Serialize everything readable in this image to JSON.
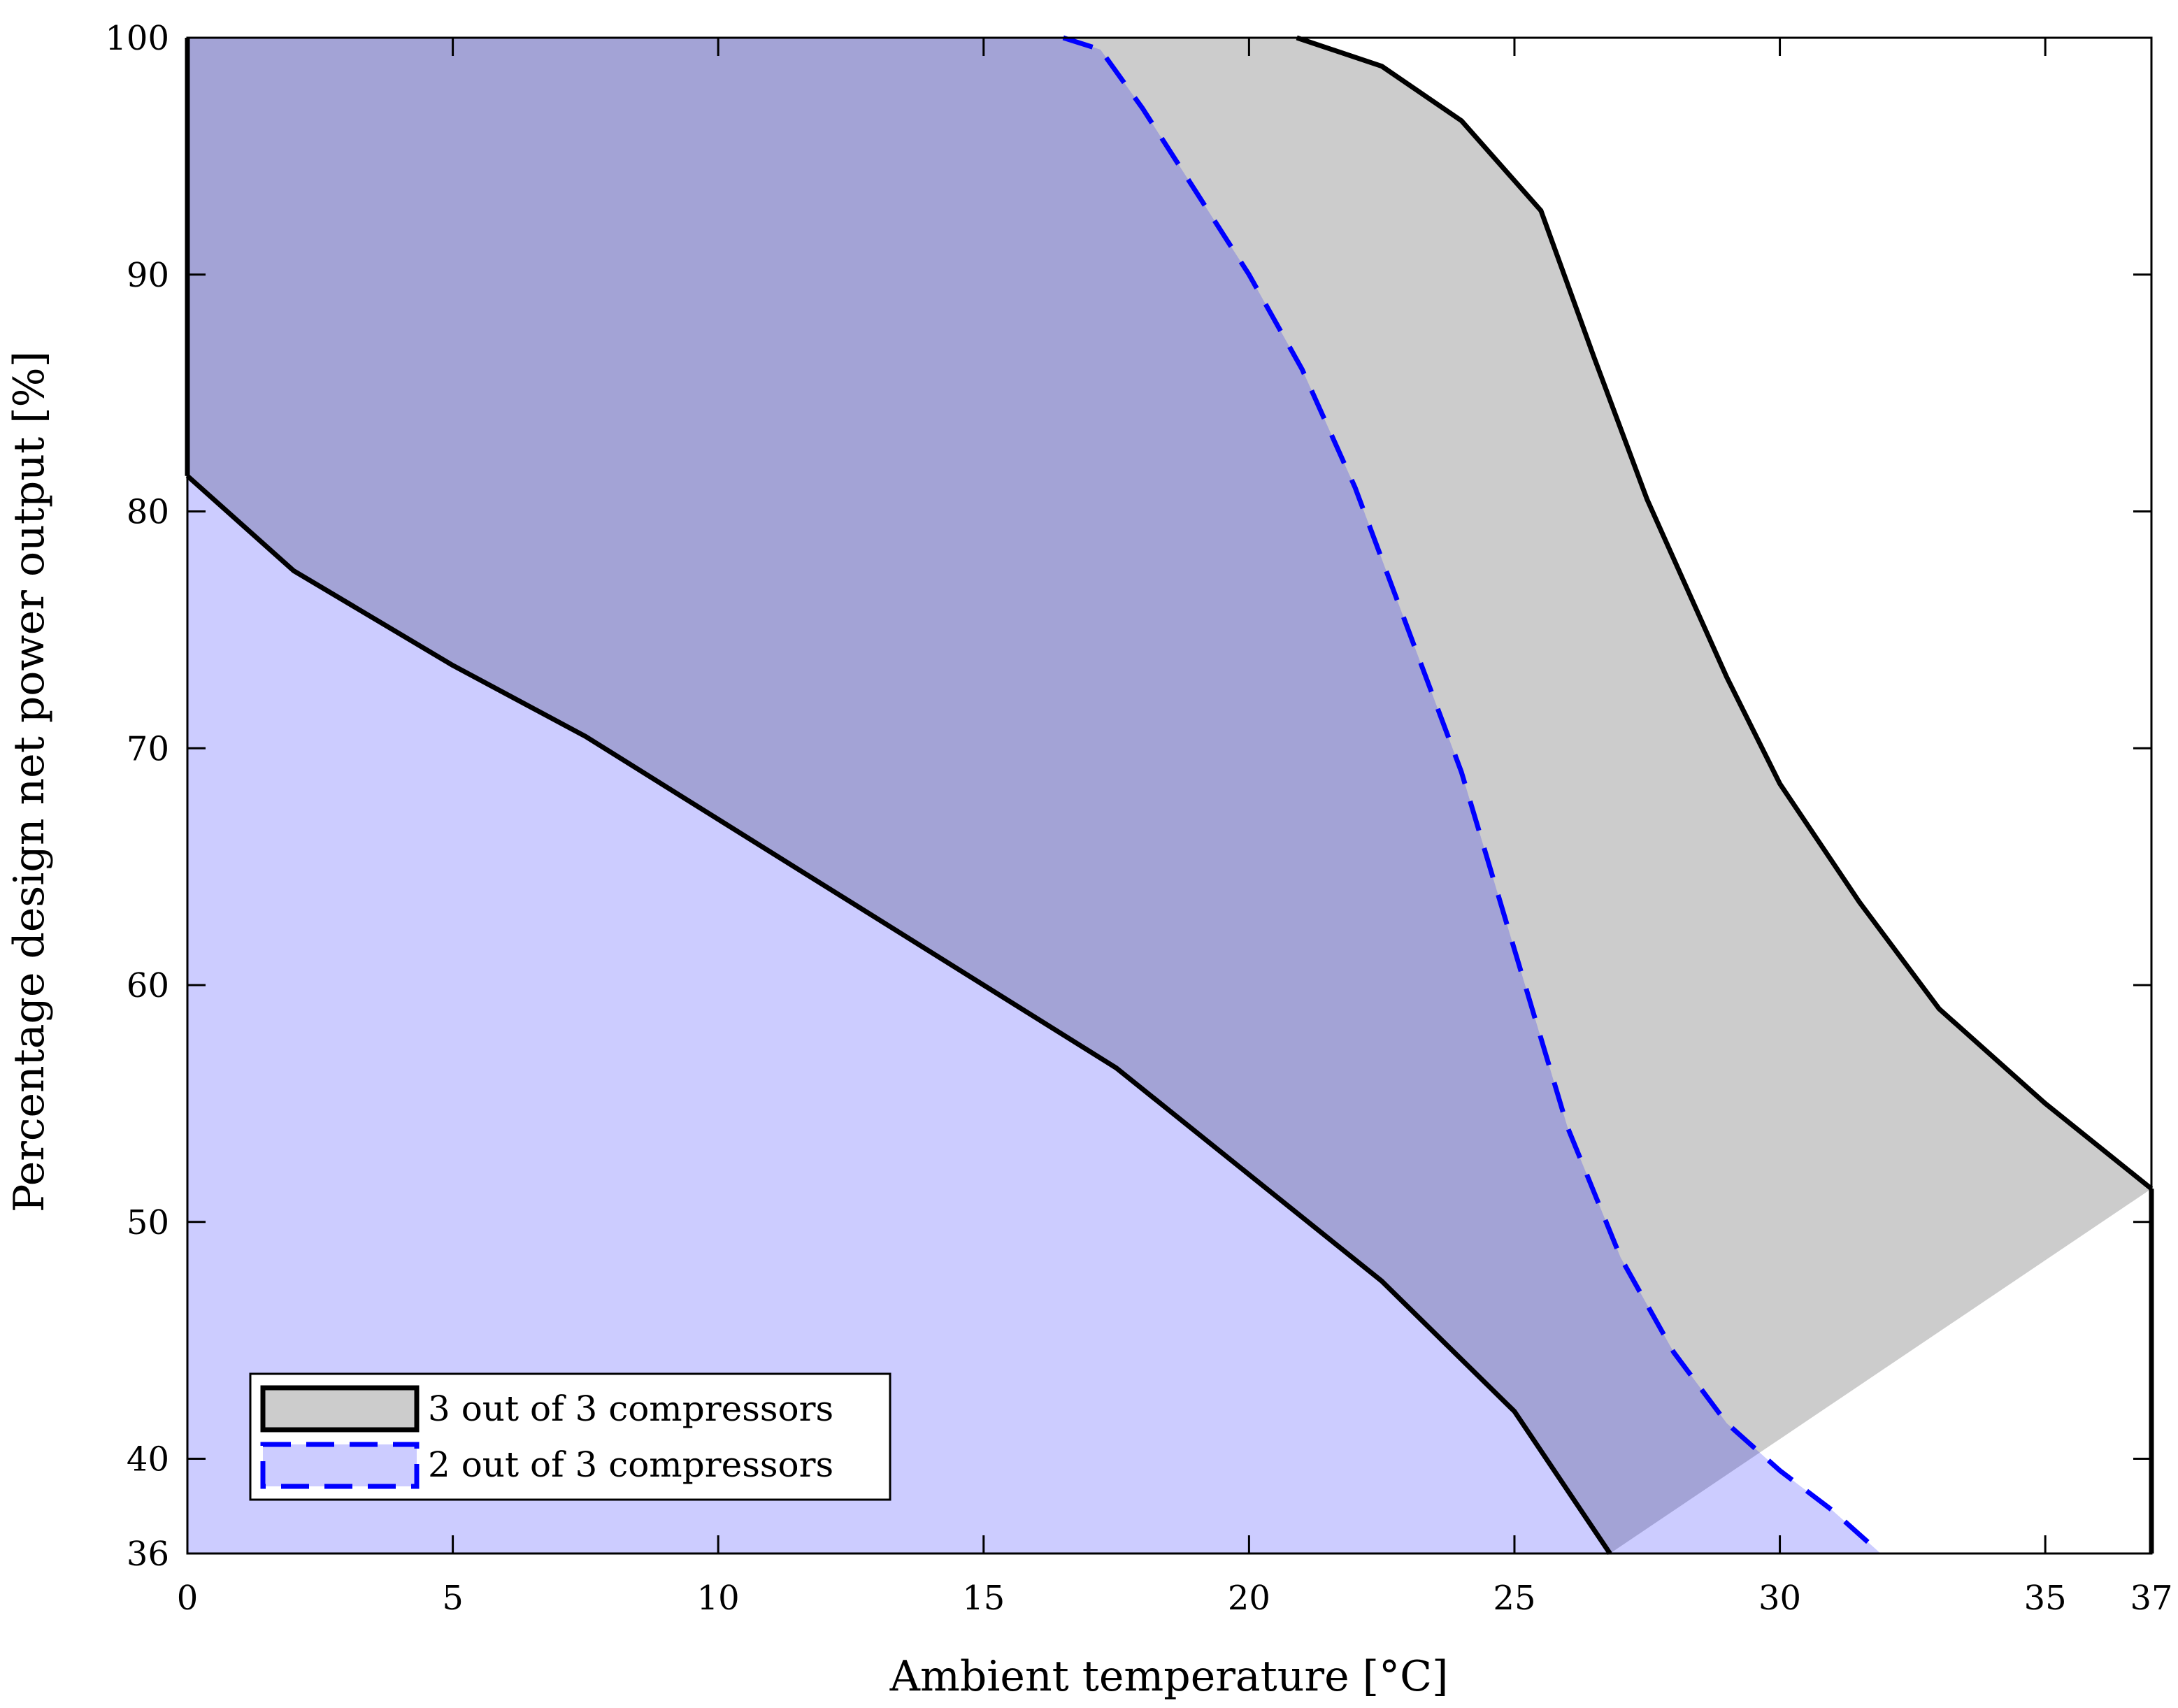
{
  "chart_data": {
    "type": "area",
    "xlabel": "Ambient temperature [°C]",
    "ylabel": "Percentage design net power output [%]",
    "xlim": [
      0,
      37
    ],
    "ylim": [
      36,
      100
    ],
    "xticks": [
      0,
      5,
      10,
      15,
      20,
      25,
      30,
      35,
      37
    ],
    "yticks": [
      36,
      40,
      50,
      60,
      70,
      80,
      90,
      100
    ],
    "grid": false,
    "legend_position": "bottom-left",
    "series": [
      {
        "name": "3 out of 3 compressors",
        "fill_color": "#cccccc",
        "line_color": "#000000",
        "line_style": "solid",
        "upper": [
          [
            0,
            100
          ],
          [
            20.9,
            100
          ],
          [
            22.5,
            98.8
          ],
          [
            24,
            96.5
          ],
          [
            25.5,
            92.7
          ],
          [
            26.5,
            86.5
          ],
          [
            27.5,
            80.5
          ],
          [
            29,
            73
          ],
          [
            30,
            68.5
          ],
          [
            31.5,
            63.5
          ],
          [
            33,
            59
          ],
          [
            35,
            55
          ],
          [
            37,
            51.4
          ]
        ],
        "lower": [
          [
            0,
            81.5
          ],
          [
            2,
            77.5
          ],
          [
            5,
            73.5
          ],
          [
            7.5,
            70.5
          ],
          [
            10,
            67
          ],
          [
            12.5,
            63.5
          ],
          [
            15,
            60
          ],
          [
            17.5,
            56.5
          ],
          [
            20,
            52
          ],
          [
            22.5,
            47.5
          ],
          [
            25,
            42
          ],
          [
            26.8,
            36
          ]
        ]
      },
      {
        "name": "2 out of 3 compressors",
        "fill_color": "#0000ff",
        "fill_opacity": 0.2,
        "line_color": "#0000ff",
        "line_style": "dashed",
        "upper": [
          [
            0,
            100
          ],
          [
            16.5,
            100
          ],
          [
            17.2,
            99.5
          ],
          [
            18,
            97
          ],
          [
            19,
            93.5
          ],
          [
            20,
            90
          ],
          [
            21,
            86
          ],
          [
            22,
            81
          ],
          [
            23,
            75
          ],
          [
            24,
            69
          ],
          [
            25,
            61.5
          ],
          [
            26,
            54
          ],
          [
            27,
            48.5
          ],
          [
            28,
            44.5
          ],
          [
            29,
            41.5
          ],
          [
            30,
            39.5
          ],
          [
            31,
            37.8
          ],
          [
            31.9,
            36
          ]
        ],
        "lower": [
          [
            0,
            36
          ],
          [
            31.9,
            36
          ]
        ]
      }
    ]
  }
}
